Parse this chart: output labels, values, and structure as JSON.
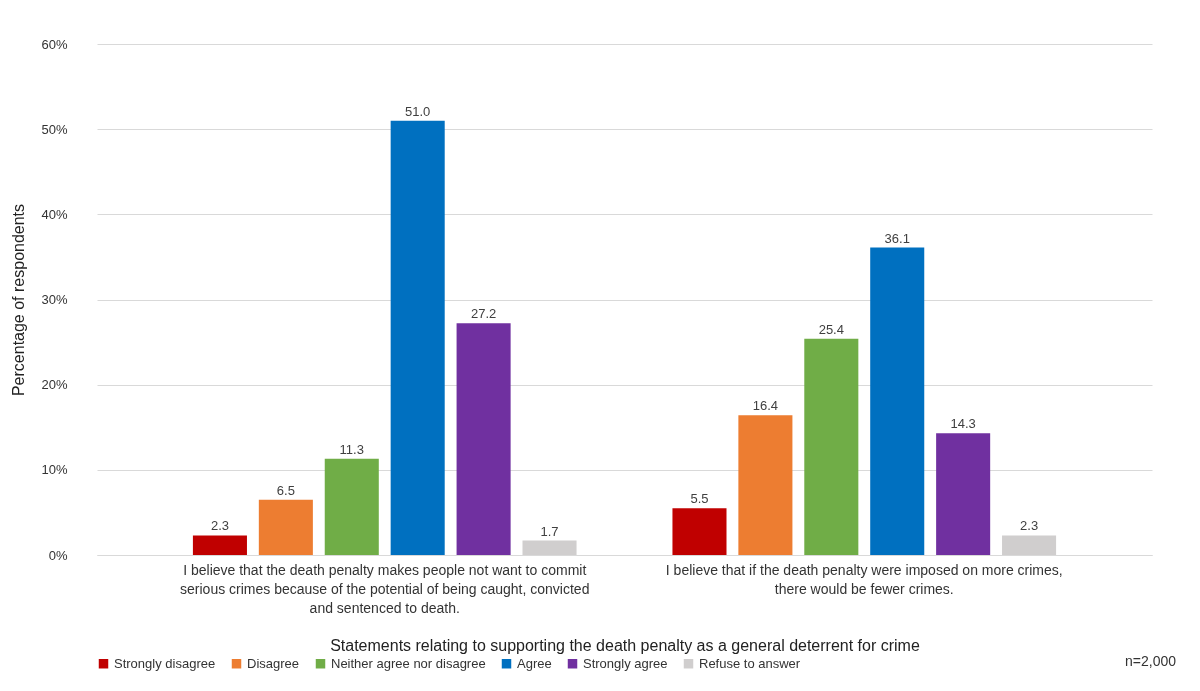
{
  "chart_data": {
    "type": "bar",
    "xlabel": "Statements relating to supporting the death penalty as a general deterrent for crime",
    "ylabel": "Percentage of respondents",
    "categories": [
      "I believe that the death penalty makes people not want to commit serious crimes because of the potential of being caught, convicted and sentenced to death.",
      "I believe that if the death penalty were imposed on more crimes, there would be fewer crimes."
    ],
    "series": [
      {
        "name": "Strongly disagree",
        "color": "#c00000",
        "values": [
          2.3,
          5.5
        ],
        "value_labels": [
          "2.3",
          "5.5"
        ]
      },
      {
        "name": "Disagree",
        "color": "#ed7d31",
        "values": [
          6.5,
          16.4
        ],
        "value_labels": [
          "6.5",
          "16.4"
        ]
      },
      {
        "name": "Neither agree nor disagree",
        "color": "#70ad47",
        "values": [
          11.3,
          25.4
        ],
        "value_labels": [
          "11.3",
          "25.4"
        ]
      },
      {
        "name": "Agree",
        "color": "#0070c0",
        "values": [
          51.0,
          36.1
        ],
        "value_labels": [
          "51.0",
          "36.1"
        ]
      },
      {
        "name": "Strongly agree",
        "color": "#7030a0",
        "values": [
          27.2,
          14.3
        ],
        "value_labels": [
          "27.2",
          "14.3"
        ]
      },
      {
        "name": "Refuse to answer",
        "color": "#d0cece",
        "values": [
          1.7,
          2.3
        ],
        "value_labels": [
          "1.7",
          "2.3"
        ]
      }
    ],
    "ylim": [
      0,
      60
    ],
    "yticks": [
      {
        "value": 0,
        "label": "0%"
      },
      {
        "value": 10,
        "label": "10%"
      },
      {
        "value": 20,
        "label": "20%"
      },
      {
        "value": 30,
        "label": "30%"
      },
      {
        "value": 40,
        "label": "40%"
      },
      {
        "value": 50,
        "label": "50%"
      },
      {
        "value": 60,
        "label": "60%"
      }
    ],
    "grid": "y",
    "legend": "bottom",
    "annotations": [
      "n=2,000"
    ]
  }
}
